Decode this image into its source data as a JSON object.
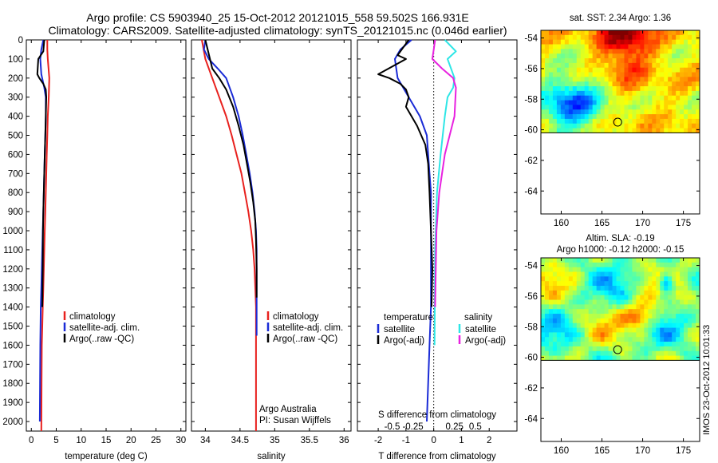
{
  "header": {
    "line1": "Argo profile: CS 5903940_25 15-Oct-2012 20121015_558 59.502S 166.931E",
    "line2": "Climatology: CARS2009. Satellite-adjusted climatology: synTS_20121015.nc (0.046d earlier)"
  },
  "colors": {
    "climatology": "#e8211e",
    "satellite": "#1a2bd6",
    "argo": "#000000",
    "salinity_satellite": "#2ee6e6",
    "salinity_argo": "#e822e0"
  },
  "chart_data": [
    {
      "type": "line",
      "name": "temperature-profile",
      "xlabel": "temperature (deg C)",
      "ylabel": "",
      "xlim": [
        -1,
        31
      ],
      "ylim": [
        2050,
        0
      ],
      "xticks": [
        0,
        5,
        10,
        15,
        20,
        25,
        30
      ],
      "yticks": [
        0,
        100,
        200,
        300,
        400,
        500,
        600,
        700,
        800,
        900,
        1000,
        1100,
        1200,
        1300,
        1400,
        1500,
        1600,
        1700,
        1800,
        1900,
        2000
      ],
      "legend": [
        "climatology",
        "satellite-adj. clim.",
        "Argo(..raw -QC)"
      ],
      "series": [
        {
          "name": "climatology",
          "color": "#e8211e",
          "x": [
            3.2,
            3.2,
            3.3,
            3.6,
            3.5,
            3.3,
            3.2,
            3.1,
            3.0,
            2.9,
            2.8,
            2.7,
            2.6,
            2.5,
            2.4,
            2.3,
            2.2,
            2.1,
            2.05,
            2.0
          ],
          "y": [
            0,
            50,
            100,
            200,
            300,
            400,
            500,
            600,
            700,
            800,
            900,
            1000,
            1100,
            1200,
            1300,
            1400,
            1500,
            1600,
            1800,
            2050
          ]
        },
        {
          "name": "satellite-adj. clim.",
          "color": "#1a2bd6",
          "x": [
            2.4,
            2.0,
            1.8,
            2.0,
            2.6,
            2.9,
            2.9,
            2.8,
            2.7,
            2.6,
            2.5,
            2.4,
            2.3,
            2.2,
            2.1,
            2.0,
            1.9,
            1.8,
            1.75,
            1.7
          ],
          "y": [
            0,
            50,
            100,
            180,
            250,
            300,
            400,
            500,
            600,
            700,
            800,
            900,
            1000,
            1100,
            1200,
            1300,
            1400,
            1600,
            1800,
            2000
          ]
        },
        {
          "name": "Argo(..raw -QC)",
          "color": "#000000",
          "x": [
            2.6,
            2.4,
            1.4,
            1.2,
            1.6,
            2.4,
            2.9,
            3.0,
            2.9,
            2.8,
            2.7,
            2.6,
            2.5,
            2.4,
            2.35,
            2.3,
            2.2
          ],
          "y": [
            0,
            60,
            100,
            180,
            200,
            230,
            260,
            300,
            400,
            500,
            600,
            700,
            800,
            900,
            1000,
            1200,
            1400
          ]
        }
      ]
    },
    {
      "type": "line",
      "name": "salinity-profile",
      "xlabel": "salinity",
      "ylabel": "",
      "xlim": [
        33.8,
        36.1
      ],
      "ylim": [
        2050,
        0
      ],
      "xticks": [
        34,
        34.5,
        35,
        35.5,
        36
      ],
      "xticklabels": [
        "34",
        "34.5",
        "35",
        "35.5",
        "36"
      ],
      "legend": [
        "climatology",
        "satellite-adj. clim.",
        "Argo(..raw -QC)"
      ],
      "annotations": [
        "Argo Australia",
        "PI: Susan Wijffels"
      ],
      "series": [
        {
          "name": "climatology",
          "color": "#e8211e",
          "x": [
            33.95,
            34.0,
            34.1,
            34.2,
            34.3,
            34.38,
            34.45,
            34.52,
            34.57,
            34.62,
            34.66,
            34.69,
            34.71,
            34.72,
            34.73,
            34.73,
            34.73
          ],
          "y": [
            0,
            100,
            200,
            300,
            400,
            500,
            600,
            700,
            800,
            900,
            1000,
            1100,
            1200,
            1300,
            1400,
            1600,
            2050
          ]
        },
        {
          "name": "satellite-adj. clim.",
          "color": "#1a2bd6",
          "x": [
            34.0,
            33.98,
            34.05,
            34.18,
            34.3,
            34.4,
            34.48,
            34.54,
            34.59,
            34.64,
            34.68,
            34.71,
            34.73,
            34.74,
            34.74,
            34.74
          ],
          "y": [
            0,
            50,
            100,
            150,
            200,
            300,
            400,
            500,
            600,
            700,
            800,
            900,
            1000,
            1100,
            1300,
            1550
          ]
        },
        {
          "name": "Argo(..raw -QC)",
          "color": "#000000",
          "x": [
            34.0,
            34.1,
            34.2,
            34.3,
            34.4,
            34.48,
            34.55,
            34.6,
            34.65,
            34.69,
            34.72,
            34.73,
            34.74,
            34.74
          ],
          "y": [
            0,
            150,
            200,
            260,
            350,
            450,
            550,
            650,
            750,
            850,
            950,
            1050,
            1200,
            1350
          ]
        }
      ]
    },
    {
      "type": "line",
      "name": "difference-profile",
      "xlabel": "T difference from climatology",
      "top_xlabel": "S difference from climatology",
      "ylabel": "",
      "xlim": [
        -2.75,
        3.0
      ],
      "ylim": [
        2050,
        0
      ],
      "xticks": [
        -2,
        -1,
        0,
        1,
        2
      ],
      "top_xticks_t": [
        -1.5,
        -0.75,
        0.75,
        1.5
      ],
      "top_xticklabels": [
        "-0.5",
        "-0.25",
        "0.25",
        "0.5"
      ],
      "legend_temperature_title": "temperature",
      "legend_salinity_title": "salinity",
      "legend": [
        "satellite",
        "Argo(-adj)",
        "satellite",
        "Argo(-adj)"
      ],
      "series": [
        {
          "name": "temperature satellite",
          "color": "#1a2bd6",
          "x": [
            -0.8,
            -1.2,
            -1.4,
            -1.3,
            -0.9,
            -0.5,
            -0.25,
            -0.2,
            -0.15,
            -0.1,
            -0.1,
            -0.1,
            -0.1,
            -0.15,
            -0.2,
            -0.25
          ],
          "y": [
            0,
            50,
            100,
            200,
            300,
            400,
            500,
            600,
            700,
            800,
            1000,
            1200,
            1400,
            1600,
            1800,
            2000
          ]
        },
        {
          "name": "temperature Argo(-adj)",
          "color": "#000000",
          "x": [
            -0.9,
            -1.3,
            -1.0,
            -2.0,
            -1.6,
            -1.2,
            -1.0,
            -0.9,
            -1.0,
            -0.6,
            -0.3,
            -0.2,
            -0.15,
            -0.1,
            -0.05,
            -0.08
          ],
          "y": [
            0,
            80,
            100,
            180,
            200,
            230,
            260,
            300,
            350,
            450,
            550,
            650,
            800,
            1000,
            1200,
            1400
          ]
        },
        {
          "name": "salinity satellite",
          "color": "#2ee6e6",
          "x": [
            0.4,
            0.8,
            0.5,
            0.75,
            0.7,
            0.5,
            0.4,
            0.25,
            0.12,
            0.05,
            0.03
          ],
          "y": [
            0,
            60,
            100,
            200,
            250,
            300,
            400,
            600,
            800,
            1100,
            1600
          ]
        },
        {
          "name": "salinity Argo(-adj)",
          "color": "#e822e0",
          "x": [
            0.05,
            0.0,
            -0.05,
            0.3,
            0.7,
            0.8,
            0.75,
            0.4,
            0.2,
            0.1,
            0.05
          ],
          "y": [
            0,
            50,
            100,
            150,
            200,
            250,
            400,
            600,
            800,
            1000,
            1400
          ]
        }
      ]
    },
    {
      "type": "heatmap",
      "name": "sst-map",
      "title": "sat. SST: 2.34  Argo: 1.36",
      "xlim": [
        157.5,
        177
      ],
      "ylim": [
        -65.5,
        -53.5
      ],
      "xticks": [
        160,
        165,
        170,
        175
      ],
      "yticks": [
        -54,
        -56,
        -58,
        -60,
        -62,
        -64
      ],
      "data_extent_lat": [
        -60.2,
        -53.5
      ],
      "marker": {
        "lon": 166.931,
        "lat": -59.502
      }
    },
    {
      "type": "heatmap",
      "name": "sla-map",
      "title": "Altim. SLA: -0.19",
      "subtitle": "Argo h1000: -0.12 h2000: -0.15",
      "xlim": [
        157.5,
        177
      ],
      "ylim": [
        -65.5,
        -53.5
      ],
      "xticks": [
        160,
        165,
        170,
        175
      ],
      "yticks": [
        -54,
        -56,
        -58,
        -60,
        -62,
        -64
      ],
      "data_extent_lat": [
        -60.2,
        -53.5
      ],
      "marker": {
        "lon": 166.931,
        "lat": -59.502
      }
    }
  ],
  "footer": {
    "stamp": "IMOS 23-Oct-2012 10:01:33"
  }
}
